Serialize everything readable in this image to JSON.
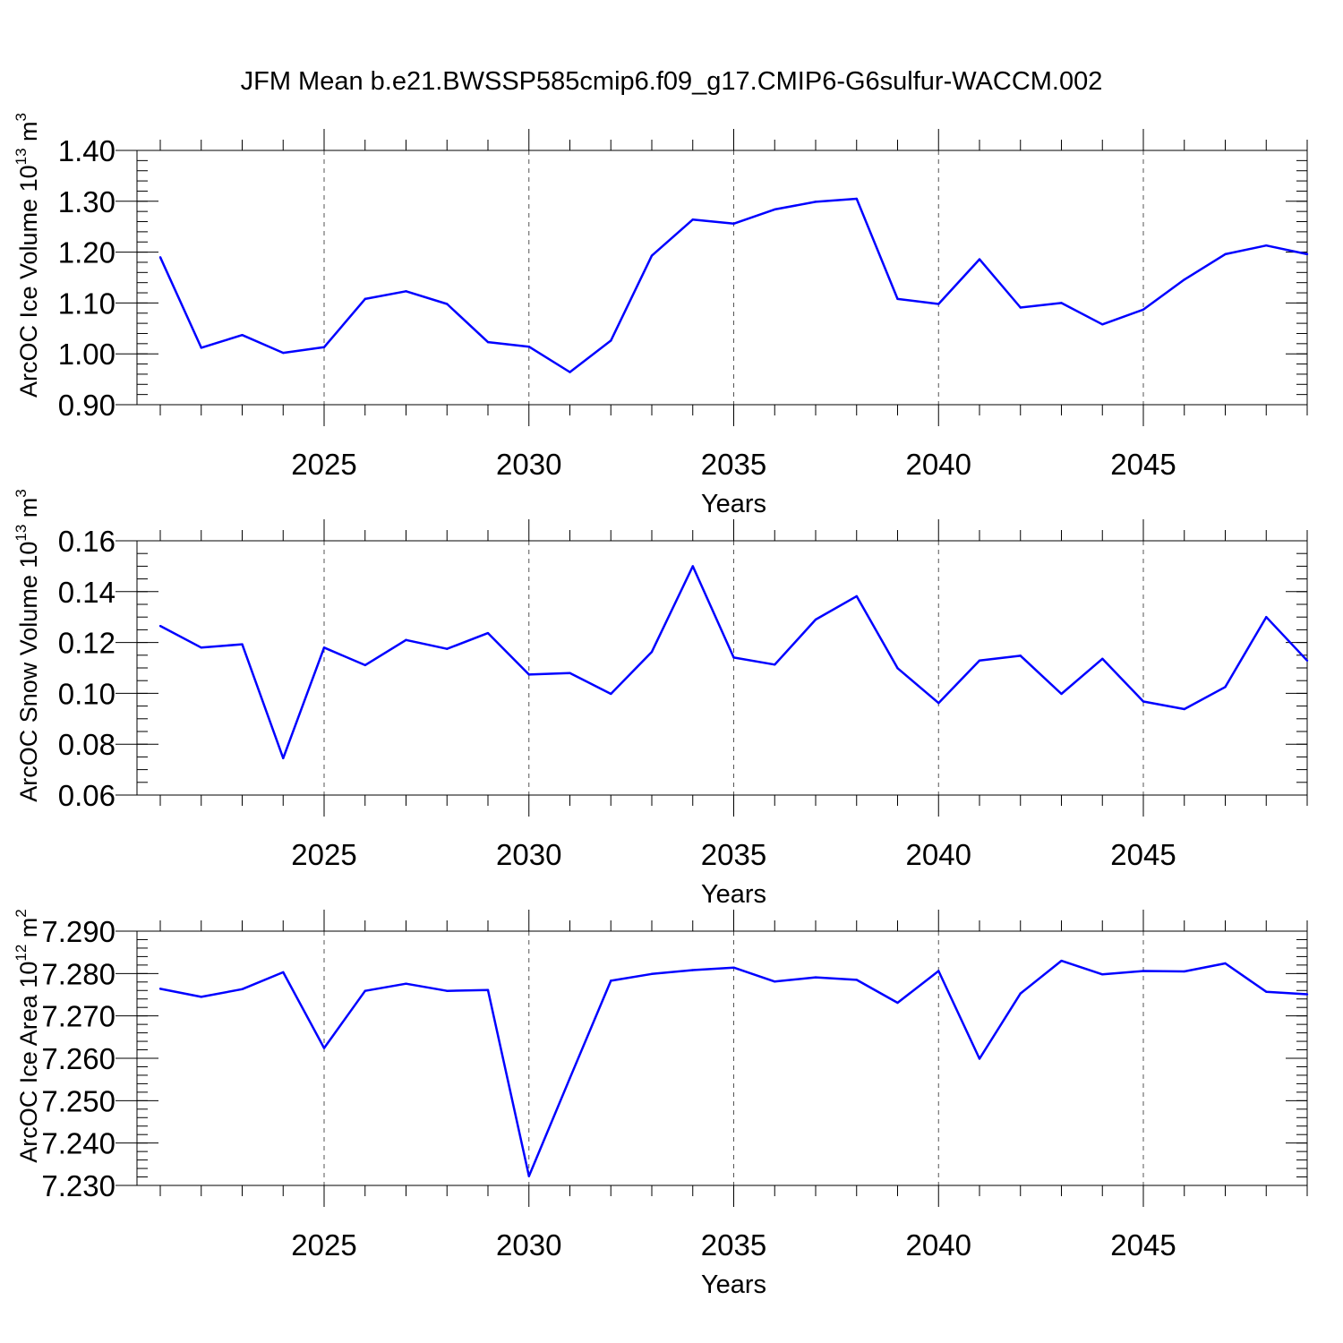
{
  "title": "JFM Mean b.e21.BWSSP585cmip6.f09_g17.CMIP6-G6sulfur-WACCM.002",
  "line_color": "#0000ff",
  "chart_data": [
    {
      "type": "line",
      "name": "ice-volume",
      "ylabel": "ArcOC Ice Volume",
      "yunit_base": "10",
      "yunit_exp": "13",
      "yunit_dim": "m",
      "yunit_dim_exp": "3",
      "xlabel": "Years",
      "xlim": [
        2021,
        2049
      ],
      "ylim": [
        0.9,
        1.4
      ],
      "yticks": [
        "0.90",
        "1.00",
        "1.10",
        "1.20",
        "1.30",
        "1.40"
      ],
      "ytick_values": [
        0.9,
        1.0,
        1.1,
        1.2,
        1.3,
        1.4
      ],
      "yminor_step": 0.02,
      "xticks": [
        "2025",
        "2030",
        "2035",
        "2040",
        "2045"
      ],
      "xtick_values": [
        2025,
        2030,
        2035,
        2040,
        2045
      ],
      "x": [
        2021,
        2022,
        2023,
        2024,
        2025,
        2026,
        2027,
        2028,
        2029,
        2030,
        2031,
        2032,
        2033,
        2034,
        2035,
        2036,
        2037,
        2038,
        2039,
        2040,
        2041,
        2042,
        2043,
        2044,
        2045,
        2046,
        2047,
        2048,
        2049
      ],
      "values": [
        1.19,
        1.012,
        1.037,
        1.002,
        1.013,
        1.108,
        1.123,
        1.098,
        1.023,
        1.014,
        0.964,
        1.026,
        1.193,
        1.264,
        1.256,
        1.284,
        1.299,
        1.305,
        1.108,
        1.098,
        1.186,
        1.091,
        1.1,
        1.058,
        1.087,
        1.146,
        1.196,
        1.213,
        1.196
      ]
    },
    {
      "type": "line",
      "name": "snow-volume",
      "ylabel": "ArcOC Snow Volume",
      "yunit_base": "10",
      "yunit_exp": "13",
      "yunit_dim": "m",
      "yunit_dim_exp": "3",
      "xlabel": "Years",
      "xlim": [
        2021,
        2049
      ],
      "ylim": [
        0.06,
        0.16
      ],
      "yticks": [
        "0.06",
        "0.08",
        "0.10",
        "0.12",
        "0.14",
        "0.16"
      ],
      "ytick_values": [
        0.06,
        0.08,
        0.1,
        0.12,
        0.14,
        0.16
      ],
      "yminor_step": 0.005,
      "xticks": [
        "2025",
        "2030",
        "2035",
        "2040",
        "2045"
      ],
      "xtick_values": [
        2025,
        2030,
        2035,
        2040,
        2045
      ],
      "x": [
        2021,
        2022,
        2023,
        2024,
        2025,
        2026,
        2027,
        2028,
        2029,
        2030,
        2031,
        2032,
        2033,
        2034,
        2035,
        2036,
        2037,
        2038,
        2039,
        2040,
        2041,
        2042,
        2043,
        2044,
        2045,
        2046,
        2047,
        2048,
        2049
      ],
      "values": [
        0.1265,
        0.118,
        0.1193,
        0.0745,
        0.118,
        0.1111,
        0.121,
        0.1175,
        0.1237,
        0.1074,
        0.108,
        0.0998,
        0.1163,
        0.15,
        0.1141,
        0.1113,
        0.129,
        0.1382,
        0.1099,
        0.0962,
        0.1129,
        0.1148,
        0.0998,
        0.1136,
        0.0968,
        0.0938,
        0.1025,
        0.13,
        0.1129
      ]
    },
    {
      "type": "line",
      "name": "ice-area",
      "ylabel": "ArcOC Ice Area",
      "yunit_base": "10",
      "yunit_exp": "12",
      "yunit_dim": "m",
      "yunit_dim_exp": "2",
      "xlabel": "Years",
      "xlim": [
        2021,
        2049
      ],
      "ylim": [
        7.23,
        7.29
      ],
      "yticks": [
        "7.230",
        "7.240",
        "7.250",
        "7.260",
        "7.270",
        "7.280",
        "7.290"
      ],
      "ytick_values": [
        7.23,
        7.24,
        7.25,
        7.26,
        7.27,
        7.28,
        7.29
      ],
      "yminor_step": 0.002,
      "xticks": [
        "2025",
        "2030",
        "2035",
        "2040",
        "2045"
      ],
      "xtick_values": [
        2025,
        2030,
        2035,
        2040,
        2045
      ],
      "x": [
        2021,
        2022,
        2023,
        2024,
        2025,
        2026,
        2027,
        2028,
        2029,
        2030,
        2031,
        2032,
        2033,
        2034,
        2035,
        2036,
        2037,
        2038,
        2039,
        2040,
        2041,
        2042,
        2043,
        2044,
        2045,
        2046,
        2047,
        2048,
        2049
      ],
      "values": [
        7.2764,
        7.2745,
        7.2763,
        7.2803,
        7.2624,
        7.2759,
        7.2776,
        7.2759,
        7.2761,
        7.2322,
        7.2553,
        7.2783,
        7.2799,
        7.2808,
        7.2814,
        7.2781,
        7.2791,
        7.2785,
        7.2731,
        7.2806,
        7.2599,
        7.2753,
        7.283,
        7.2798,
        7.2806,
        7.2805,
        7.2824,
        7.2757,
        7.2751
      ]
    }
  ]
}
